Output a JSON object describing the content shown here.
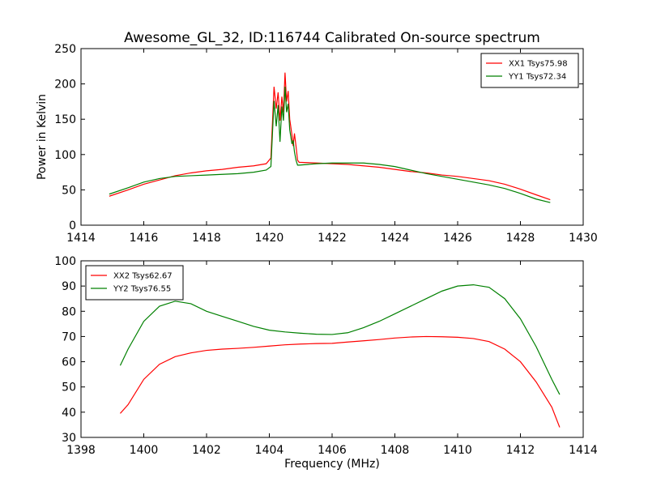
{
  "chart_data": [
    {
      "type": "line",
      "title": "Awesome_GL_32, ID:116744 Calibrated On-source spectrum",
      "xlabel": "",
      "ylabel": "Power in Kelvin",
      "xlim": [
        1414,
        1430
      ],
      "ylim": [
        0,
        250
      ],
      "xticks": [
        1414,
        1416,
        1418,
        1420,
        1422,
        1424,
        1426,
        1428,
        1430
      ],
      "yticks": [
        0,
        50,
        100,
        150,
        200,
        250
      ],
      "legend_position": "top-right",
      "grid": false,
      "series": [
        {
          "name": "XX1 Tsys75.98",
          "color": "#ff0000",
          "points": [
            [
              1414.9,
              41
            ],
            [
              1415.5,
              50
            ],
            [
              1416.0,
              58
            ],
            [
              1416.5,
              64
            ],
            [
              1417.0,
              70
            ],
            [
              1417.5,
              74
            ],
            [
              1418.0,
              77
            ],
            [
              1418.5,
              79
            ],
            [
              1419.0,
              82
            ],
            [
              1419.5,
              84
            ],
            [
              1419.9,
              87
            ],
            [
              1420.05,
              95
            ],
            [
              1420.1,
              145
            ],
            [
              1420.15,
              196
            ],
            [
              1420.22,
              165
            ],
            [
              1420.28,
              188
            ],
            [
              1420.34,
              148
            ],
            [
              1420.4,
              182
            ],
            [
              1420.45,
              160
            ],
            [
              1420.5,
              216
            ],
            [
              1420.55,
              175
            ],
            [
              1420.6,
              190
            ],
            [
              1420.65,
              150
            ],
            [
              1420.72,
              128
            ],
            [
              1420.76,
              112
            ],
            [
              1420.8,
              130
            ],
            [
              1420.85,
              112
            ],
            [
              1420.9,
              92
            ],
            [
              1420.95,
              89
            ],
            [
              1421.5,
              88
            ],
            [
              1422.0,
              87
            ],
            [
              1422.5,
              86
            ],
            [
              1423.0,
              84
            ],
            [
              1423.5,
              82
            ],
            [
              1424.0,
              79
            ],
            [
              1424.5,
              76
            ],
            [
              1425.0,
              74
            ],
            [
              1425.5,
              71
            ],
            [
              1426.0,
              69
            ],
            [
              1426.5,
              66
            ],
            [
              1427.0,
              63
            ],
            [
              1427.5,
              58
            ],
            [
              1428.0,
              51
            ],
            [
              1428.5,
              43
            ],
            [
              1428.95,
              36
            ]
          ]
        },
        {
          "name": "YY1 Tsys72.34",
          "color": "#008000",
          "points": [
            [
              1414.9,
              44
            ],
            [
              1415.5,
              53
            ],
            [
              1416.0,
              61
            ],
            [
              1416.5,
              66
            ],
            [
              1417.0,
              69
            ],
            [
              1417.5,
              70
            ],
            [
              1418.0,
              71
            ],
            [
              1418.5,
              72
            ],
            [
              1419.0,
              73
            ],
            [
              1419.5,
              75
            ],
            [
              1419.9,
              78
            ],
            [
              1420.05,
              83
            ],
            [
              1420.1,
              130
            ],
            [
              1420.15,
              176
            ],
            [
              1420.22,
              140
            ],
            [
              1420.28,
              170
            ],
            [
              1420.34,
              118
            ],
            [
              1420.4,
              168
            ],
            [
              1420.45,
              148
            ],
            [
              1420.5,
              196
            ],
            [
              1420.55,
              160
            ],
            [
              1420.6,
              172
            ],
            [
              1420.65,
              135
            ],
            [
              1420.72,
              115
            ],
            [
              1420.76,
              120
            ],
            [
              1420.8,
              104
            ],
            [
              1420.85,
              92
            ],
            [
              1420.9,
              85
            ],
            [
              1420.95,
              85
            ],
            [
              1421.5,
              87
            ],
            [
              1422.0,
              88
            ],
            [
              1422.5,
              88
            ],
            [
              1423.0,
              88
            ],
            [
              1423.5,
              86
            ],
            [
              1424.0,
              83
            ],
            [
              1424.5,
              78
            ],
            [
              1425.0,
              73
            ],
            [
              1425.5,
              69
            ],
            [
              1426.0,
              65
            ],
            [
              1426.5,
              61
            ],
            [
              1427.0,
              57
            ],
            [
              1427.5,
              52
            ],
            [
              1428.0,
              45
            ],
            [
              1428.5,
              37
            ],
            [
              1428.95,
              32
            ]
          ]
        }
      ]
    },
    {
      "type": "line",
      "title": "",
      "xlabel": "Frequency (MHz)",
      "ylabel": "",
      "xlim": [
        1398,
        1414
      ],
      "ylim": [
        30,
        100
      ],
      "xticks": [
        1398,
        1400,
        1402,
        1404,
        1406,
        1408,
        1410,
        1412,
        1414
      ],
      "yticks": [
        30,
        40,
        50,
        60,
        70,
        80,
        90,
        100
      ],
      "legend_position": "top-left",
      "grid": false,
      "series": [
        {
          "name": "XX2 Tsys62.67",
          "color": "#ff0000",
          "points": [
            [
              1399.25,
              39.5
            ],
            [
              1399.5,
              43
            ],
            [
              1400.0,
              53
            ],
            [
              1400.5,
              59
            ],
            [
              1401.0,
              62
            ],
            [
              1401.5,
              63.5
            ],
            [
              1402.0,
              64.5
            ],
            [
              1402.5,
              65
            ],
            [
              1403.0,
              65.3
            ],
            [
              1403.5,
              65.7
            ],
            [
              1404.0,
              66.2
            ],
            [
              1404.5,
              66.7
            ],
            [
              1405.0,
              67
            ],
            [
              1405.5,
              67.2
            ],
            [
              1406.0,
              67.3
            ],
            [
              1406.5,
              67.8
            ],
            [
              1407.0,
              68.3
            ],
            [
              1407.5,
              68.8
            ],
            [
              1408.0,
              69.4
            ],
            [
              1408.5,
              69.8
            ],
            [
              1409.0,
              70
            ],
            [
              1409.5,
              69.9
            ],
            [
              1410.0,
              69.7
            ],
            [
              1410.5,
              69.2
            ],
            [
              1411.0,
              68
            ],
            [
              1411.5,
              65
            ],
            [
              1412.0,
              60
            ],
            [
              1412.5,
              52
            ],
            [
              1413.0,
              42
            ],
            [
              1413.25,
              34
            ]
          ]
        },
        {
          "name": "YY2 Tsys76.55",
          "color": "#008000",
          "points": [
            [
              1399.25,
              58.5
            ],
            [
              1399.5,
              65
            ],
            [
              1400.0,
              76
            ],
            [
              1400.5,
              82
            ],
            [
              1401.0,
              84
            ],
            [
              1401.5,
              83
            ],
            [
              1402.0,
              80
            ],
            [
              1402.5,
              78
            ],
            [
              1403.0,
              76
            ],
            [
              1403.5,
              74
            ],
            [
              1404.0,
              72.5
            ],
            [
              1404.5,
              71.8
            ],
            [
              1405.0,
              71.3
            ],
            [
              1405.5,
              70.9
            ],
            [
              1406.0,
              70.8
            ],
            [
              1406.5,
              71.5
            ],
            [
              1407.0,
              73.5
            ],
            [
              1407.5,
              76
            ],
            [
              1408.0,
              79
            ],
            [
              1408.5,
              82
            ],
            [
              1409.0,
              85
            ],
            [
              1409.5,
              88
            ],
            [
              1410.0,
              90
            ],
            [
              1410.5,
              90.5
            ],
            [
              1411.0,
              89.5
            ],
            [
              1411.5,
              85
            ],
            [
              1412.0,
              77
            ],
            [
              1412.5,
              66
            ],
            [
              1413.0,
              53
            ],
            [
              1413.25,
              47
            ]
          ]
        }
      ]
    }
  ]
}
